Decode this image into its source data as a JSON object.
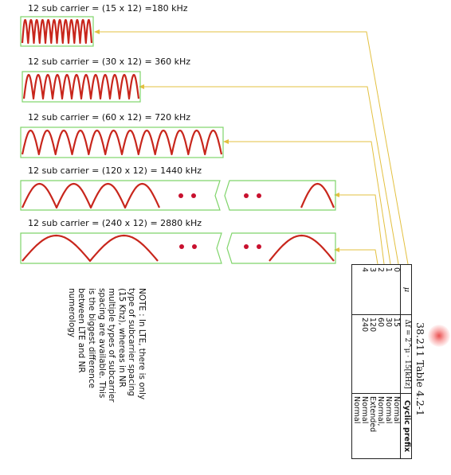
{
  "rows": [
    {
      "label": "12 sub carrier = (15 x 12) =180 kHz"
    },
    {
      "label": "12 sub carrier = (30 x 12) = 360 kHz"
    },
    {
      "label": "12 sub carrier = (60 x 12) = 720 kHz"
    },
    {
      "label": "12 sub carrier = (120 x 12) = 1440 kHz"
    },
    {
      "label": "12 sub carrier = (240 x 12) = 2880 kHz"
    }
  ],
  "note": "NOTE : In LTE, there is only type of subcarrier spacing (15 Khz), whereas in NR multiple types of subcarrier spacing are available. This is the biggest difference between LTE and NR numerology",
  "table": {
    "caption": "38.211 Table 4.2-1",
    "headers": {
      "mu": "μ",
      "delta_f": "Δf = 2^μ · 15[kHz]",
      "cp": "Cyclic prefix"
    },
    "mu_values": "0\n1\n2\n3\n4",
    "delta_f_values": "15\n30\n60\n120\n240",
    "cp_values": "Normal\nNormal\nNormal, Extended\nNormal\nNormal"
  },
  "colors": {
    "wave": "#c8261c",
    "frame": "#7fd46a",
    "arrow": "#e3c040",
    "dot": "#c8102e"
  }
}
